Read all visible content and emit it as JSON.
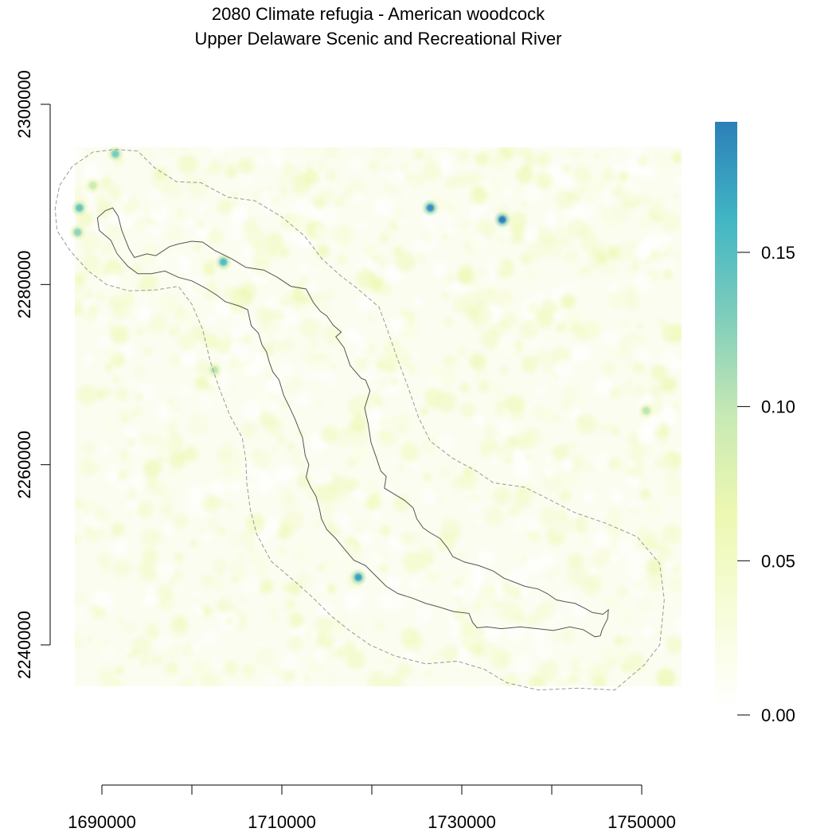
{
  "title": {
    "line1": "2080 Climate refugia - American woodcock",
    "line2": "Upper Delaware Scenic and Recreational River"
  },
  "axes": {
    "x_tick_values": [
      1685000,
      1695000,
      1705000,
      1715000,
      1725000,
      1735000,
      1745000
    ],
    "x_tick_labels": [
      "1690000",
      "1710000",
      "1730000",
      "1750000"
    ],
    "x_label_values": [
      1690000,
      1710000,
      1730000,
      1750000
    ],
    "y_tick_values": [
      2300000,
      2280000,
      2260000,
      2240000
    ],
    "y_tick_labels": [
      "2300000",
      "2280000",
      "2260000",
      "2240000"
    ]
  },
  "legend": {
    "type": "continuous colorbar",
    "range": [
      0,
      0.19
    ],
    "tick_labels": [
      "0.00",
      "0.05",
      "0.10",
      "0.15"
    ],
    "tick_values": [
      0.0,
      0.05,
      0.1,
      0.15
    ],
    "colors": [
      "#ffffff",
      "#f7fcd9",
      "#edf8b1",
      "#c7e9b4",
      "#7fcdbb",
      "#41b6c4",
      "#2c7fb8"
    ]
  },
  "chart_data": {
    "type": "heatmap",
    "title": "2080 Climate refugia - American woodcock\nUpper Delaware Scenic and Recreational River",
    "xlim": [
      1682000,
      1750000
    ],
    "ylim": [
      2235000,
      2300000
    ],
    "raster_extent": {
      "x": [
        1679000,
        1747000
      ],
      "y": [
        2235000,
        2295000
      ]
    },
    "value_range": [
      0,
      0.19
    ],
    "hotspots": [
      {
        "x": 1698500,
        "y": 2282500,
        "value": 0.15
      },
      {
        "x": 1713500,
        "y": 2247500,
        "value": 0.17
      },
      {
        "x": 1721500,
        "y": 2288500,
        "value": 0.18
      },
      {
        "x": 1729500,
        "y": 2287200,
        "value": 0.19
      },
      {
        "x": 1682500,
        "y": 2288500,
        "value": 0.14
      },
      {
        "x": 1682300,
        "y": 2285800,
        "value": 0.12
      },
      {
        "x": 1686500,
        "y": 2294500,
        "value": 0.13
      },
      {
        "x": 1697500,
        "y": 2270500,
        "value": 0.1
      },
      {
        "x": 1745500,
        "y": 2266000,
        "value": 0.1
      },
      {
        "x": 1684000,
        "y": 2291000,
        "value": 0.09
      }
    ],
    "river_boundary": [
      [
        1684500,
        2287400
      ],
      [
        1685400,
        2288200
      ],
      [
        1686200,
        2288500
      ],
      [
        1686800,
        2287600
      ],
      [
        1687200,
        2286000
      ],
      [
        1688000,
        2284000
      ],
      [
        1688600,
        2283000
      ],
      [
        1690000,
        2283400
      ],
      [
        1691000,
        2283200
      ],
      [
        1692500,
        2284200
      ],
      [
        1693500,
        2284500
      ],
      [
        1695000,
        2284800
      ],
      [
        1696200,
        2284700
      ],
      [
        1697500,
        2283800
      ],
      [
        1699500,
        2282800
      ],
      [
        1701000,
        2281900
      ],
      [
        1703000,
        2281600
      ],
      [
        1704500,
        2280800
      ],
      [
        1706000,
        2279800
      ],
      [
        1707700,
        2279500
      ],
      [
        1708500,
        2278000
      ],
      [
        1709300,
        2277000
      ],
      [
        1710000,
        2276500
      ],
      [
        1710700,
        2275500
      ],
      [
        1711600,
        2274700
      ],
      [
        1711000,
        2274200
      ],
      [
        1711900,
        2273000
      ],
      [
        1712600,
        2271000
      ],
      [
        1713800,
        2269600
      ],
      [
        1714300,
        2269400
      ],
      [
        1714800,
        2268200
      ],
      [
        1714200,
        2266300
      ],
      [
        1714600,
        2264500
      ],
      [
        1714900,
        2262500
      ],
      [
        1715500,
        2260800
      ],
      [
        1716000,
        2259300
      ],
      [
        1716600,
        2258700
      ],
      [
        1716400,
        2257400
      ],
      [
        1717400,
        2256800
      ],
      [
        1718700,
        2256000
      ],
      [
        1719600,
        2255200
      ],
      [
        1720000,
        2254000
      ],
      [
        1720700,
        2253000
      ],
      [
        1721400,
        2252500
      ],
      [
        1722600,
        2251800
      ],
      [
        1723400,
        2250800
      ],
      [
        1724000,
        2249800
      ],
      [
        1725300,
        2249200
      ],
      [
        1726900,
        2248800
      ],
      [
        1728500,
        2248200
      ],
      [
        1729700,
        2247400
      ],
      [
        1731000,
        2246900
      ],
      [
        1732000,
        2246500
      ],
      [
        1733500,
        2246200
      ],
      [
        1734500,
        2245700
      ],
      [
        1735500,
        2245000
      ],
      [
        1736500,
        2244800
      ],
      [
        1737600,
        2244600
      ],
      [
        1738800,
        2244000
      ],
      [
        1739500,
        2243600
      ],
      [
        1740700,
        2243400
      ],
      [
        1741300,
        2243900
      ],
      [
        1741200,
        2242900
      ],
      [
        1740600,
        2241700
      ],
      [
        1740400,
        2241000
      ],
      [
        1739800,
        2240900
      ],
      [
        1738500,
        2241700
      ],
      [
        1737000,
        2242000
      ],
      [
        1735200,
        2241600
      ],
      [
        1733400,
        2241800
      ],
      [
        1731500,
        2242000
      ],
      [
        1729400,
        2241800
      ],
      [
        1727800,
        2242000
      ],
      [
        1726700,
        2241900
      ],
      [
        1726200,
        2242500
      ],
      [
        1725800,
        2243500
      ],
      [
        1724100,
        2243700
      ],
      [
        1722500,
        2244200
      ],
      [
        1721000,
        2244600
      ],
      [
        1719500,
        2245200
      ],
      [
        1717900,
        2245700
      ],
      [
        1716600,
        2246500
      ],
      [
        1715600,
        2247500
      ],
      [
        1714300,
        2248800
      ],
      [
        1713000,
        2249400
      ],
      [
        1711900,
        2250700
      ],
      [
        1711000,
        2251800
      ],
      [
        1710000,
        2252800
      ],
      [
        1709400,
        2254000
      ],
      [
        1709200,
        2255000
      ],
      [
        1708800,
        2256500
      ],
      [
        1708200,
        2257500
      ],
      [
        1707700,
        2258600
      ],
      [
        1708000,
        2260000
      ],
      [
        1707600,
        2261000
      ],
      [
        1707300,
        2263000
      ],
      [
        1706800,
        2264200
      ],
      [
        1706500,
        2265000
      ],
      [
        1705800,
        2266500
      ],
      [
        1705200,
        2267700
      ],
      [
        1704700,
        2269400
      ],
      [
        1704000,
        2270300
      ],
      [
        1703600,
        2271400
      ],
      [
        1703300,
        2272500
      ],
      [
        1702800,
        2273300
      ],
      [
        1702400,
        2274600
      ],
      [
        1701600,
        2275400
      ],
      [
        1701200,
        2277200
      ],
      [
        1700300,
        2277600
      ],
      [
        1698700,
        2278100
      ],
      [
        1697800,
        2278800
      ],
      [
        1696700,
        2279500
      ],
      [
        1695000,
        2280400
      ],
      [
        1693500,
        2280800
      ],
      [
        1692000,
        2281500
      ],
      [
        1690500,
        2281200
      ],
      [
        1689000,
        2281200
      ],
      [
        1687900,
        2282000
      ],
      [
        1686700,
        2283400
      ],
      [
        1686000,
        2284900
      ],
      [
        1685300,
        2285500
      ],
      [
        1684700,
        2286000
      ],
      [
        1684500,
        2287400
      ]
    ],
    "buffer_boundary": [
      [
        1680300,
        2291000
      ],
      [
        1681700,
        2293100
      ],
      [
        1684000,
        2294700
      ],
      [
        1686500,
        2295000
      ],
      [
        1689000,
        2294800
      ],
      [
        1690800,
        2293000
      ],
      [
        1693300,
        2291400
      ],
      [
        1696000,
        2291300
      ],
      [
        1699000,
        2289700
      ],
      [
        1702000,
        2289300
      ],
      [
        1705000,
        2287500
      ],
      [
        1707500,
        2285400
      ],
      [
        1709500,
        2282800
      ],
      [
        1711500,
        2281000
      ],
      [
        1713200,
        2279700
      ],
      [
        1715800,
        2277500
      ],
      [
        1716800,
        2274800
      ],
      [
        1717800,
        2271900
      ],
      [
        1719000,
        2268700
      ],
      [
        1720200,
        2265200
      ],
      [
        1721500,
        2262600
      ],
      [
        1724000,
        2260700
      ],
      [
        1726600,
        2259300
      ],
      [
        1728500,
        2258000
      ],
      [
        1732000,
        2257500
      ],
      [
        1735000,
        2256000
      ],
      [
        1737500,
        2254700
      ],
      [
        1741000,
        2253500
      ],
      [
        1744500,
        2252000
      ],
      [
        1747000,
        2249000
      ],
      [
        1747500,
        2245000
      ],
      [
        1747000,
        2240000
      ],
      [
        1745300,
        2237800
      ],
      [
        1742000,
        2235000
      ],
      [
        1738000,
        2235200
      ],
      [
        1733500,
        2235000
      ],
      [
        1730000,
        2235800
      ],
      [
        1727500,
        2237300
      ],
      [
        1724500,
        2238200
      ],
      [
        1721000,
        2237900
      ],
      [
        1717500,
        2238800
      ],
      [
        1714800,
        2240000
      ],
      [
        1712500,
        2241600
      ],
      [
        1710500,
        2243200
      ],
      [
        1708500,
        2245200
      ],
      [
        1706500,
        2247000
      ],
      [
        1703800,
        2249300
      ],
      [
        1702200,
        2252300
      ],
      [
        1701500,
        2255000
      ],
      [
        1701100,
        2258000
      ],
      [
        1701000,
        2260500
      ],
      [
        1700600,
        2263000
      ],
      [
        1699200,
        2265500
      ],
      [
        1698000,
        2268600
      ],
      [
        1697000,
        2271600
      ],
      [
        1696200,
        2275000
      ],
      [
        1695000,
        2277800
      ],
      [
        1693500,
        2279800
      ],
      [
        1691000,
        2279400
      ],
      [
        1688000,
        2279300
      ],
      [
        1685500,
        2280000
      ],
      [
        1683500,
        2281500
      ],
      [
        1681500,
        2283700
      ],
      [
        1680000,
        2286000
      ],
      [
        1679800,
        2288500
      ],
      [
        1680300,
        2291000
      ]
    ]
  }
}
